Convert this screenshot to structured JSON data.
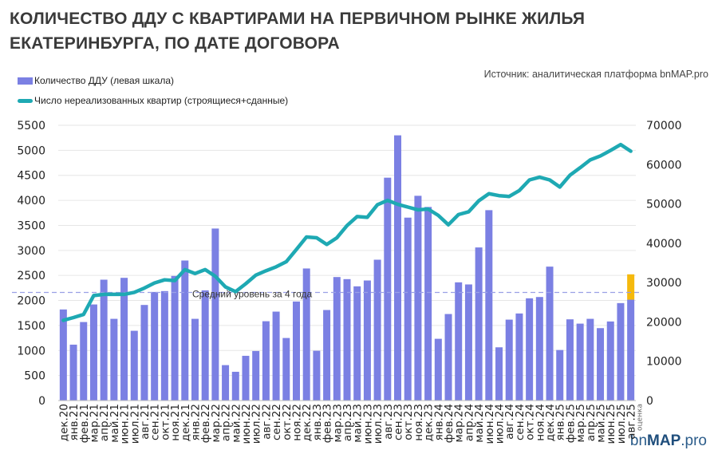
{
  "title_lines": [
    "КОЛИЧЕСТВО ДДУ С КВАРТИРАМИ НА ПЕРВИЧНОМ РЫНКЕ ЖИЛЬЯ",
    "ЕКАТЕРИНБУРГА, ПО ДАТЕ ДОГОВОРА"
  ],
  "source": "Источник: аналитическая платформа bnMAP.pro",
  "logo": {
    "prefix": "bn",
    "bold": "MAP",
    "suffix": ".pro"
  },
  "colors": {
    "bars": "#7b80e3",
    "line": "#1ea9b3",
    "estimate": "#f5b90d",
    "avg_line": "#9aa0e6"
  },
  "chart_data": {
    "type": "bar+line",
    "categories": [
      "дек.20",
      "янв.21",
      "фев.21",
      "мар.21",
      "апр.21",
      "май.21",
      "июн.21",
      "июл.21",
      "авг.21",
      "сен.21",
      "окт.21",
      "ноя.21",
      "дек.21",
      "янв.22",
      "фев.22",
      "мар.22",
      "апр.22",
      "май.22",
      "июн.22",
      "июл.22",
      "авг.22",
      "сен.22",
      "окт.22",
      "ноя.22",
      "дек.22",
      "янв.23",
      "фев.23",
      "мар.23",
      "апр.23",
      "май.23",
      "июн.23",
      "июл.23",
      "авг.23",
      "сен.23",
      "окт.23",
      "ноя.23",
      "дек.23",
      "янв.24",
      "фев.24",
      "мар.24",
      "апр.24",
      "май.24",
      "июн.24",
      "июл.24",
      "авг.24",
      "сен.24",
      "окт.24",
      "ноя.24",
      "дек.24",
      "янв.25",
      "фев.25",
      "мар.25",
      "апр.25",
      "май.25",
      "июн.25",
      "июл.25",
      "авг.25"
    ],
    "last_category_note": "оценка",
    "series": [
      {
        "name": "Количество ДДУ (левая шкала)",
        "type": "bar",
        "axis": "left",
        "values": [
          1820,
          1117,
          1569,
          1920,
          2415,
          1633,
          2452,
          1394,
          1910,
          2170,
          2187,
          2490,
          2798,
          1633,
          2202,
          3437,
          708,
          575,
          894,
          990,
          1585,
          1777,
          1250,
          1979,
          2639,
          995,
          1809,
          2468,
          2426,
          2282,
          2399,
          2814,
          4453,
          5299,
          3655,
          4091,
          3868,
          1234,
          1729,
          2362,
          2320,
          3059,
          3804,
          1064,
          1617,
          1740,
          2043,
          2069,
          2676,
          1010,
          1623,
          1537,
          1633,
          1447,
          1580,
          1947,
          2016
        ],
        "estimate_last": 2522
      },
      {
        "name": "Число нереализованных квартир (строящиеся+сданные)",
        "type": "line",
        "axis": "right",
        "values": [
          20400,
          21100,
          21900,
          26700,
          27000,
          27000,
          27000,
          27500,
          28600,
          29900,
          30700,
          30500,
          33300,
          32300,
          33300,
          31600,
          28900,
          27700,
          29700,
          31900,
          33000,
          34000,
          35300,
          38400,
          41600,
          41400,
          39700,
          41400,
          44500,
          46800,
          46600,
          49800,
          50900,
          49900,
          49200,
          48500,
          48700,
          47100,
          44700,
          47300,
          48000,
          50800,
          52600,
          52100,
          51900,
          53400,
          56100,
          56800,
          56100,
          54300,
          57300,
          59200,
          61200,
          62200,
          63600,
          65100,
          63400
        ]
      }
    ],
    "average_line": {
      "label": "Средний уровень за 4 года",
      "value": 2160,
      "axis": "left"
    },
    "left_axis": {
      "ylim": [
        0,
        5500
      ],
      "ticks": [
        "0",
        "500",
        "1000",
        "1500",
        "2000",
        "2500",
        "3000",
        "3500",
        "4000",
        "4500",
        "5000",
        "5500"
      ]
    },
    "right_axis": {
      "ylim": [
        0,
        70000
      ],
      "ticks": [
        "0",
        "10000",
        "20000",
        "30000",
        "40000",
        "50000",
        "60000",
        "70000"
      ]
    },
    "grid": true,
    "legend_position": "top-left"
  }
}
